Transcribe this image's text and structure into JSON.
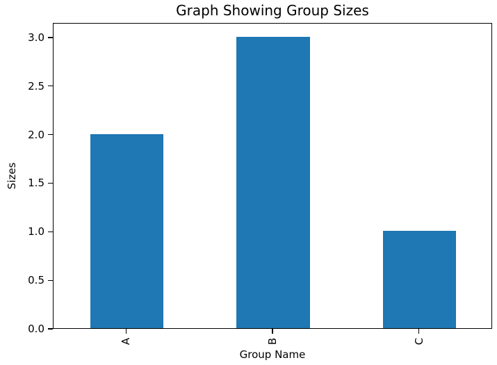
{
  "chart_data": {
    "type": "bar",
    "title": "Graph Showing Group Sizes",
    "xlabel": "Group Name",
    "ylabel": "Sizes",
    "categories": [
      "A",
      "B",
      "C"
    ],
    "values": [
      2,
      3,
      1
    ],
    "ytick_labels": [
      "0.0",
      "0.5",
      "1.0",
      "1.5",
      "2.0",
      "2.5",
      "3.0"
    ],
    "ylim": [
      0,
      3.15
    ],
    "bar_color": "#1f77b4",
    "bar_width_fraction": 0.5,
    "x_tick_rotation_deg": -90,
    "grid": false,
    "legend": "none",
    "background": "#ffffff",
    "spine_color": "#000000"
  }
}
